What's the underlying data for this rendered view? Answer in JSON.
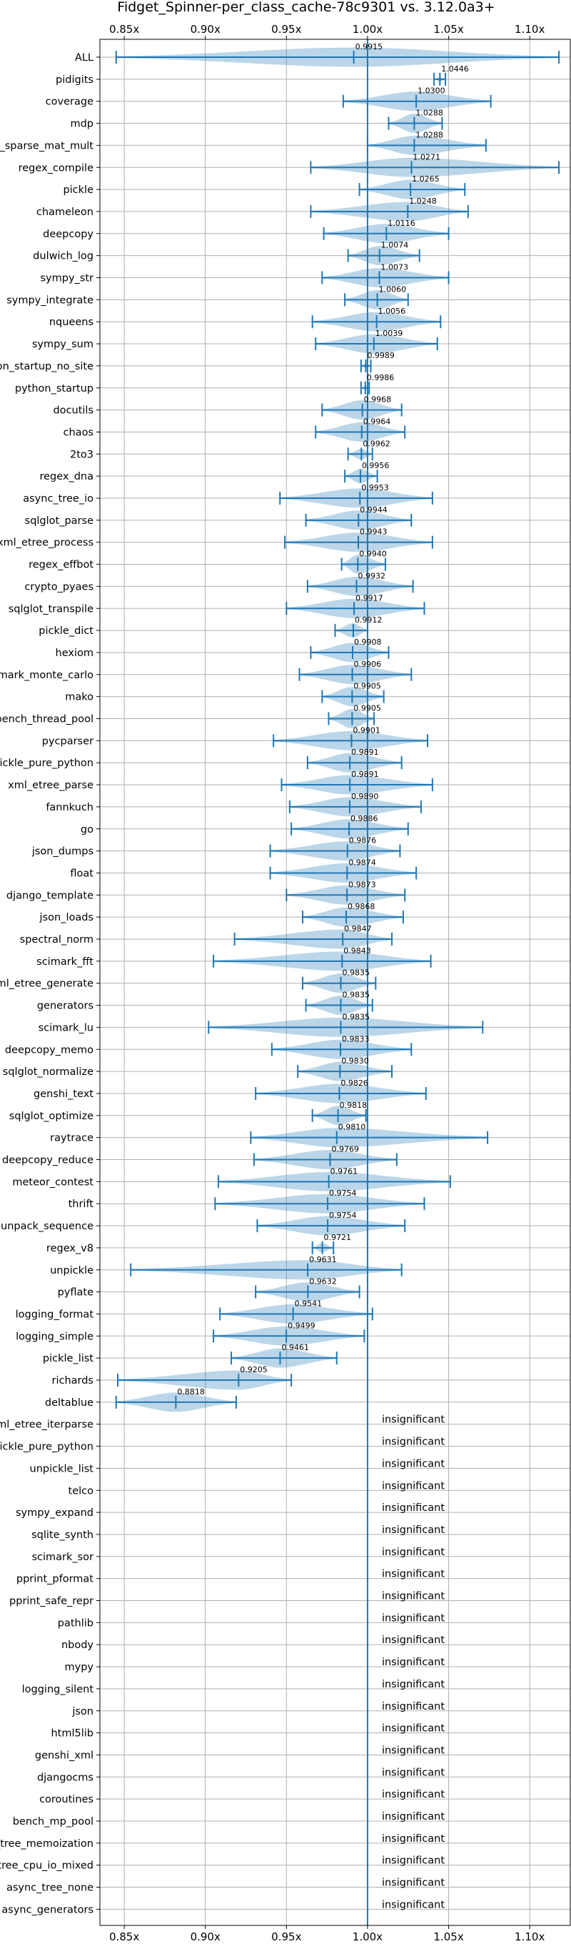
{
  "chart_data": {
    "type": "violin",
    "title": "Fidget_Spinner-per_class_cache-78c9301 vs. 3.12.0a3+",
    "xlim": [
      0.835,
      1.125
    ],
    "x_ticks": [
      0.85,
      0.9,
      0.95,
      1.0,
      1.05,
      1.1
    ],
    "x_tick_labels": [
      "0.85x",
      "0.90x",
      "0.95x",
      "1.00x",
      "1.05x",
      "1.10x"
    ],
    "reference_line": 1.0,
    "grid": true,
    "insignificant_label": "insignificant",
    "benchmarks": [
      {
        "name": "ALL",
        "mean": 0.9915,
        "label": "0.9915",
        "min": 0.845,
        "max": 1.118
      },
      {
        "name": "pidigits",
        "mean": 1.0446,
        "label": "1.0446",
        "min": 1.041,
        "max": 1.048
      },
      {
        "name": "coverage",
        "mean": 1.03,
        "label": "1.0300",
        "min": 0.985,
        "max": 1.076
      },
      {
        "name": "mdp",
        "mean": 1.0288,
        "label": "1.0288",
        "min": 1.013,
        "max": 1.046
      },
      {
        "name": "scimark_sparse_mat_mult",
        "mean": 1.0288,
        "label": "1.0288",
        "min": 1.0,
        "max": 1.073
      },
      {
        "name": "regex_compile",
        "mean": 1.0271,
        "label": "1.0271",
        "min": 0.965,
        "max": 1.118
      },
      {
        "name": "pickle",
        "mean": 1.0265,
        "label": "1.0265",
        "min": 0.995,
        "max": 1.06
      },
      {
        "name": "chameleon",
        "mean": 1.0248,
        "label": "1.0248",
        "min": 0.965,
        "max": 1.062
      },
      {
        "name": "deepcopy",
        "mean": 1.0116,
        "label": "1.0116",
        "min": 0.973,
        "max": 1.05
      },
      {
        "name": "dulwich_log",
        "mean": 1.0074,
        "label": "1.0074",
        "min": 0.988,
        "max": 1.032
      },
      {
        "name": "sympy_str",
        "mean": 1.0073,
        "label": "1.0073",
        "min": 0.972,
        "max": 1.05
      },
      {
        "name": "sympy_integrate",
        "mean": 1.006,
        "label": "1.0060",
        "min": 0.986,
        "max": 1.025
      },
      {
        "name": "nqueens",
        "mean": 1.0056,
        "label": "1.0056",
        "min": 0.966,
        "max": 1.045
      },
      {
        "name": "sympy_sum",
        "mean": 1.0039,
        "label": "1.0039",
        "min": 0.968,
        "max": 1.043
      },
      {
        "name": "python_startup_no_site",
        "mean": 0.9989,
        "label": "0.9989",
        "min": 0.996,
        "max": 1.002
      },
      {
        "name": "python_startup",
        "mean": 0.9986,
        "label": "0.9986",
        "min": 0.996,
        "max": 1.001
      },
      {
        "name": "docutils",
        "mean": 0.9968,
        "label": "0.9968",
        "min": 0.972,
        "max": 1.021
      },
      {
        "name": "chaos",
        "mean": 0.9964,
        "label": "0.9964",
        "min": 0.968,
        "max": 1.023
      },
      {
        "name": "2to3",
        "mean": 0.9962,
        "label": "0.9962",
        "min": 0.988,
        "max": 1.003
      },
      {
        "name": "regex_dna",
        "mean": 0.9956,
        "label": "0.9956",
        "min": 0.986,
        "max": 1.006
      },
      {
        "name": "async_tree_io",
        "mean": 0.9953,
        "label": "0.9953",
        "min": 0.946,
        "max": 1.04
      },
      {
        "name": "sqlglot_parse",
        "mean": 0.9944,
        "label": "0.9944",
        "min": 0.962,
        "max": 1.027
      },
      {
        "name": "xml_etree_process",
        "mean": 0.9943,
        "label": "0.9943",
        "min": 0.949,
        "max": 1.04
      },
      {
        "name": "regex_effbot",
        "mean": 0.994,
        "label": "0.9940",
        "min": 0.984,
        "max": 1.011
      },
      {
        "name": "crypto_pyaes",
        "mean": 0.9932,
        "label": "0.9932",
        "min": 0.963,
        "max": 1.028
      },
      {
        "name": "sqlglot_transpile",
        "mean": 0.9917,
        "label": "0.9917",
        "min": 0.95,
        "max": 1.035
      },
      {
        "name": "pickle_dict",
        "mean": 0.9912,
        "label": "0.9912",
        "min": 0.98,
        "max": 1.0
      },
      {
        "name": "hexiom",
        "mean": 0.9908,
        "label": "0.9908",
        "min": 0.965,
        "max": 1.013
      },
      {
        "name": "scimark_monte_carlo",
        "mean": 0.9906,
        "label": "0.9906",
        "min": 0.958,
        "max": 1.027
      },
      {
        "name": "mako",
        "mean": 0.9905,
        "label": "0.9905",
        "min": 0.972,
        "max": 1.01
      },
      {
        "name": "bench_thread_pool",
        "mean": 0.9905,
        "label": "0.9905",
        "min": 0.976,
        "max": 1.004
      },
      {
        "name": "pycparser",
        "mean": 0.9901,
        "label": "0.9901",
        "min": 0.942,
        "max": 1.037
      },
      {
        "name": "pickle_pure_python",
        "mean": 0.9891,
        "label": "0.9891",
        "min": 0.963,
        "max": 1.021
      },
      {
        "name": "xml_etree_parse",
        "mean": 0.9891,
        "label": "0.9891",
        "min": 0.947,
        "max": 1.04
      },
      {
        "name": "fannkuch",
        "mean": 0.989,
        "label": "0.9890",
        "min": 0.952,
        "max": 1.033
      },
      {
        "name": "go",
        "mean": 0.9886,
        "label": "0.9886",
        "min": 0.953,
        "max": 1.025
      },
      {
        "name": "json_dumps",
        "mean": 0.9876,
        "label": "0.9876",
        "min": 0.94,
        "max": 1.02
      },
      {
        "name": "float",
        "mean": 0.9874,
        "label": "0.9874",
        "min": 0.94,
        "max": 1.03
      },
      {
        "name": "django_template",
        "mean": 0.9873,
        "label": "0.9873",
        "min": 0.95,
        "max": 1.023
      },
      {
        "name": "json_loads",
        "mean": 0.9868,
        "label": "0.9868",
        "min": 0.96,
        "max": 1.022
      },
      {
        "name": "spectral_norm",
        "mean": 0.9847,
        "label": "0.9847",
        "min": 0.918,
        "max": 1.015
      },
      {
        "name": "scimark_fft",
        "mean": 0.9843,
        "label": "0.9843",
        "min": 0.905,
        "max": 1.039
      },
      {
        "name": "xml_etree_generate",
        "mean": 0.9835,
        "label": "0.9835",
        "min": 0.96,
        "max": 1.005
      },
      {
        "name": "generators",
        "mean": 0.9835,
        "label": "0.9835",
        "min": 0.962,
        "max": 1.003
      },
      {
        "name": "scimark_lu",
        "mean": 0.9835,
        "label": "0.9835",
        "min": 0.902,
        "max": 1.071
      },
      {
        "name": "deepcopy_memo",
        "mean": 0.9833,
        "label": "0.9833",
        "min": 0.941,
        "max": 1.027
      },
      {
        "name": "sqlglot_normalize",
        "mean": 0.983,
        "label": "0.9830",
        "min": 0.957,
        "max": 1.015
      },
      {
        "name": "genshi_text",
        "mean": 0.9826,
        "label": "0.9826",
        "min": 0.931,
        "max": 1.036
      },
      {
        "name": "sqlglot_optimize",
        "mean": 0.9818,
        "label": "0.9818",
        "min": 0.966,
        "max": 0.999
      },
      {
        "name": "raytrace",
        "mean": 0.981,
        "label": "0.9810",
        "min": 0.928,
        "max": 1.074
      },
      {
        "name": "deepcopy_reduce",
        "mean": 0.9769,
        "label": "0.9769",
        "min": 0.93,
        "max": 1.018
      },
      {
        "name": "meteor_contest",
        "mean": 0.9761,
        "label": "0.9761",
        "min": 0.908,
        "max": 1.051
      },
      {
        "name": "thrift",
        "mean": 0.9754,
        "label": "0.9754",
        "min": 0.906,
        "max": 1.035
      },
      {
        "name": "unpack_sequence",
        "mean": 0.9754,
        "label": "0.9754",
        "min": 0.932,
        "max": 1.023
      },
      {
        "name": "regex_v8",
        "mean": 0.9721,
        "label": "0.9721",
        "min": 0.966,
        "max": 0.979
      },
      {
        "name": "unpickle",
        "mean": 0.9631,
        "label": "0.9631",
        "min": 0.854,
        "max": 1.021
      },
      {
        "name": "pyflate",
        "mean": 0.9632,
        "label": "0.9632",
        "min": 0.931,
        "max": 0.995
      },
      {
        "name": "logging_format",
        "mean": 0.9541,
        "label": "0.9541",
        "min": 0.909,
        "max": 1.003
      },
      {
        "name": "logging_simple",
        "mean": 0.9499,
        "label": "0.9499",
        "min": 0.905,
        "max": 0.998
      },
      {
        "name": "pickle_list",
        "mean": 0.9461,
        "label": "0.9461",
        "min": 0.916,
        "max": 0.981
      },
      {
        "name": "richards",
        "mean": 0.9205,
        "label": "0.9205",
        "min": 0.846,
        "max": 0.953
      },
      {
        "name": "deltablue",
        "mean": 0.8818,
        "label": "0.8818",
        "min": 0.845,
        "max": 0.919
      }
    ],
    "insignificant_benchmarks": [
      "xml_etree_iterparse",
      "unpickle_pure_python",
      "unpickle_list",
      "telco",
      "sympy_expand",
      "sqlite_synth",
      "scimark_sor",
      "pprint_pformat",
      "pprint_safe_repr",
      "pathlib",
      "nbody",
      "mypy",
      "logging_silent",
      "json",
      "html5lib",
      "genshi_xml",
      "djangocms",
      "coroutines",
      "bench_mp_pool",
      "async_tree_memoization",
      "async_tree_cpu_io_mixed",
      "async_tree_none",
      "async_generators"
    ]
  }
}
